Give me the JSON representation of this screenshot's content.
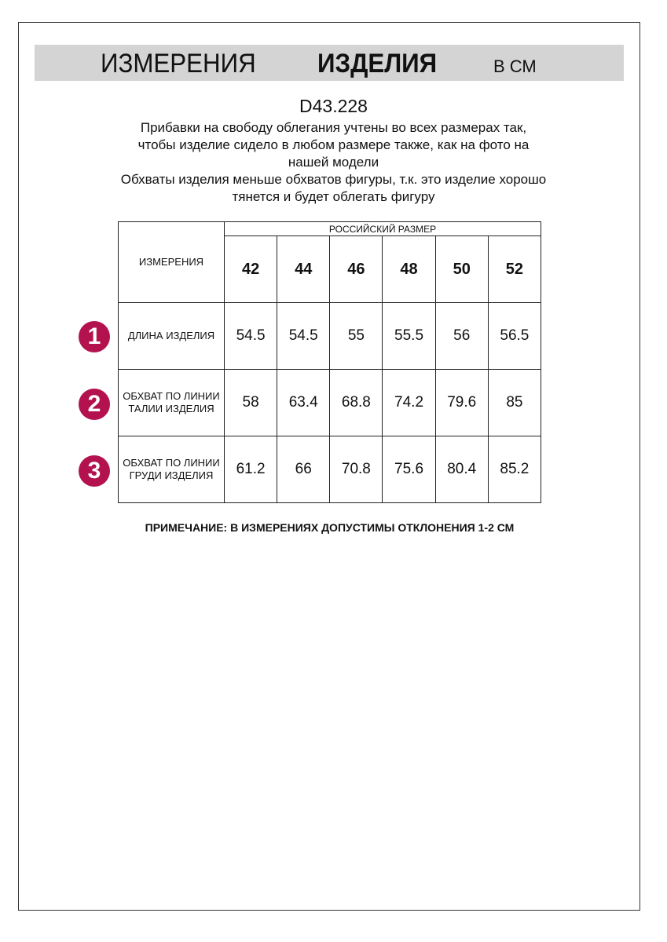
{
  "banner": {
    "part1": "ИЗМЕРЕНИЯ",
    "part2": "ИЗДЕЛИЯ",
    "unit": "В СМ"
  },
  "article_code": "D43.228",
  "description": [
    "Прибавки на свободу облегания учтены во всех размерах так, чтобы изделие сидело в любом размере также, как на фото на нашей модели",
    "Обхваты изделия меньше обхватов фигуры, т.к. это изделие хорошо тянется и будет облегать фигуру"
  ],
  "table": {
    "measure_header": "ИЗМЕРЕНИЯ",
    "size_group_header": "РОССИЙСКИЙ РАЗМЕР",
    "sizes": [
      "42",
      "44",
      "46",
      "48",
      "50",
      "52"
    ],
    "rows": [
      {
        "number": "1",
        "label": "ДЛИНА ИЗДЕЛИЯ",
        "values": [
          "54.5",
          "54.5",
          "55",
          "55.5",
          "56",
          "56.5"
        ]
      },
      {
        "number": "2",
        "label": "ОБХВАТ ПО ЛИНИИ ТАЛИИ ИЗДЕЛИЯ",
        "values": [
          "58",
          "63.4",
          "68.8",
          "74.2",
          "79.6",
          "85"
        ]
      },
      {
        "number": "3",
        "label": "ОБХВАТ ПО ЛИНИИ ГРУДИ ИЗДЕЛИЯ",
        "values": [
          "61.2",
          "66",
          "70.8",
          "75.6",
          "80.4",
          "85.2"
        ]
      }
    ]
  },
  "note": "ПРИМЕЧАНИЕ: В ИЗМЕРЕНИЯХ ДОПУСТИМЫ ОТКЛОНЕНИЯ 1-2 СМ",
  "colors": {
    "accent": "#b3124e",
    "banner_bg": "#d4d4d4"
  }
}
